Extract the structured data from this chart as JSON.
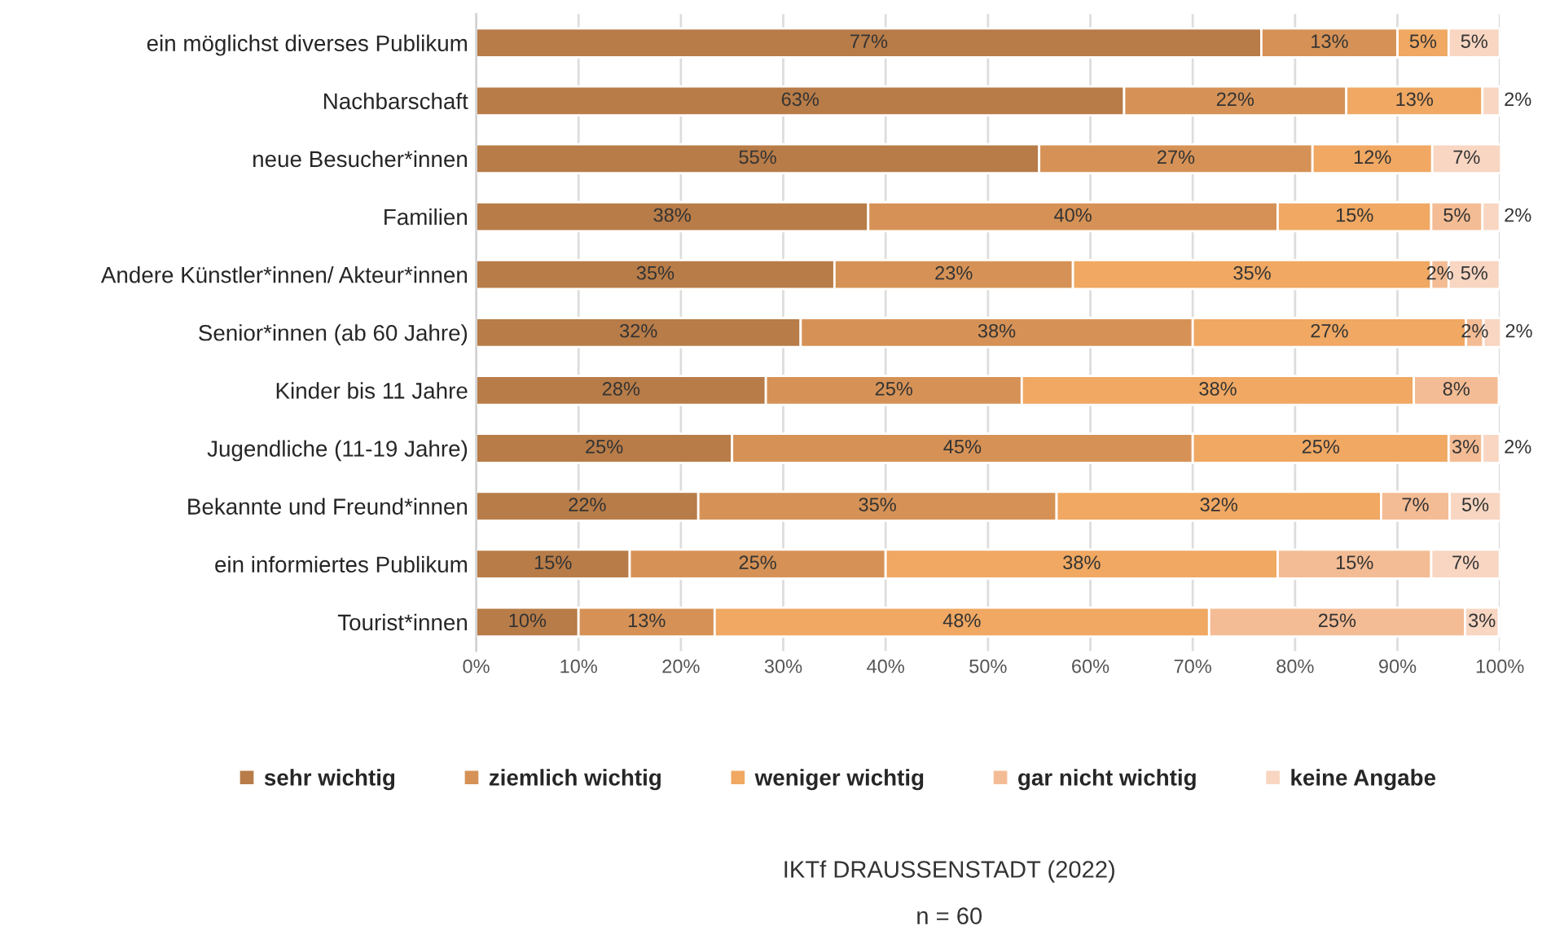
{
  "chart_data": {
    "type": "bar",
    "orientation": "horizontal",
    "stacked": true,
    "categories": [
      "ein möglichst diverses Publikum",
      "Nachbarschaft",
      "neue Besucher*innen",
      "Familien",
      "Andere Künstler*innen/ Akteur*innen",
      "Senior*innen (ab 60 Jahre)",
      "Kinder bis 11 Jahre",
      "Jugendliche (11-19 Jahre)",
      "Bekannte und Freund*innen",
      "ein informiertes Publikum",
      "Tourist*innen"
    ],
    "series": [
      {
        "name": "sehr wichtig",
        "color": "#b87c48",
        "values": [
          76.7,
          63.3,
          55.0,
          38.3,
          35.0,
          31.7,
          28.3,
          25.0,
          21.7,
          15.0,
          10.0
        ],
        "value_labels": [
          "77%",
          "63%",
          "55%",
          "38%",
          "35%",
          "32%",
          "28%",
          "25%",
          "22%",
          "15%",
          "10%"
        ]
      },
      {
        "name": "ziemlich wichtig",
        "color": "#d69256",
        "values": [
          13.3,
          21.7,
          26.7,
          40.0,
          23.3,
          38.3,
          25.0,
          45.0,
          35.0,
          25.0,
          13.3
        ],
        "value_labels": [
          "13%",
          "22%",
          "27%",
          "40%",
          "23%",
          "38%",
          "25%",
          "45%",
          "35%",
          "25%",
          "13%"
        ]
      },
      {
        "name": "weniger wichtig",
        "color": "#f0a862",
        "values": [
          5.0,
          13.3,
          11.7,
          15.0,
          35.0,
          26.7,
          38.3,
          25.0,
          31.7,
          38.3,
          48.3
        ],
        "value_labels": [
          "5%",
          "13%",
          "12%",
          "15%",
          "35%",
          "27%",
          "38%",
          "25%",
          "32%",
          "38%",
          "48%"
        ]
      },
      {
        "name": "gar nicht wichtig",
        "color": "#f4bc94",
        "values": [
          null,
          null,
          null,
          5.0,
          1.7,
          1.7,
          8.3,
          3.3,
          6.7,
          15.0,
          25.0
        ],
        "value_labels": [
          null,
          null,
          null,
          "5%",
          "2%",
          "2%",
          "8%",
          "3%",
          "7%",
          "15%",
          "25%"
        ]
      },
      {
        "name": "keine Angabe",
        "color": "#f8d6c2",
        "values": [
          5.0,
          1.7,
          6.7,
          1.7,
          5.0,
          1.7,
          null,
          1.7,
          5.0,
          6.7,
          3.3
        ],
        "value_labels": [
          "5%",
          "2%",
          "7%",
          "2%",
          "5%",
          "2%",
          null,
          "2%",
          "5%",
          "7%",
          "3%"
        ]
      }
    ],
    "xlim": [
      0,
      100
    ],
    "xticks": [
      {
        "value": 0,
        "label": "0%"
      },
      {
        "value": 10,
        "label": "10%"
      },
      {
        "value": 20,
        "label": "20%"
      },
      {
        "value": 30,
        "label": "30%"
      },
      {
        "value": 40,
        "label": "40%"
      },
      {
        "value": 50,
        "label": "50%"
      },
      {
        "value": 60,
        "label": "60%"
      },
      {
        "value": 70,
        "label": "70%"
      },
      {
        "value": 80,
        "label": "80%"
      },
      {
        "value": 90,
        "label": "90%"
      },
      {
        "value": 100,
        "label": "100%"
      }
    ],
    "grid": "x",
    "legend": "bottom",
    "annotations": [
      "IKTf DRAUSSENSTADT (2022)",
      "n = 60"
    ]
  }
}
